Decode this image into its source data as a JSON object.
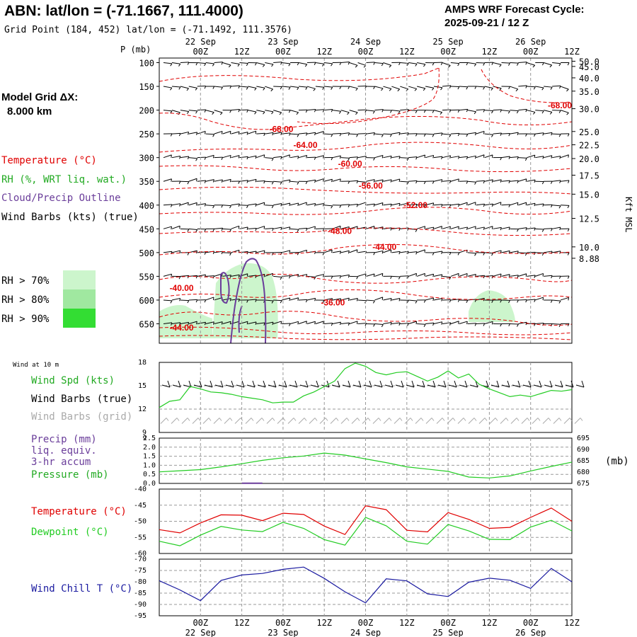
{
  "header": {
    "title": "ABN:  lat/lon = (-71.1667, 111.4000)",
    "subtitle": "Grid Point (184, 452) lat/lon = (-71.1492, 111.3576)",
    "cycle_label": "AMPS WRF Forecast Cycle:",
    "cycle_value": "2025-09-21 / 12  Z"
  },
  "left_panel": {
    "grid_label": "Model Grid ΔX:",
    "grid_value": "8.000 km",
    "temperature_label": "Temperature (°C)",
    "rh_label": "RH (%, WRT liq. wat.)",
    "cloud_label": "Cloud/Precip Outline",
    "wind_barbs_label": "Wind Barbs (kts) (true)",
    "rh_bins": [
      "RH > 70%",
      "RH > 80%",
      "RH > 90%"
    ],
    "p_axis_label": "P (mb)"
  },
  "colors": {
    "temperature": "#e00000",
    "rh_label": "#22aa22",
    "cloud": "#6a3d9a",
    "rh70": "#ccf5cc",
    "rh80": "#a0e8a0",
    "rh90": "#33dd33",
    "dewpoint": "#22cc22",
    "wind_chill": "#1a1aa0",
    "grid_barbs": "#aaaaaa"
  },
  "time_axis": {
    "hour_labels": [
      "00Z",
      "12Z",
      "00Z",
      "12Z",
      "00Z",
      "12Z",
      "00Z",
      "12Z",
      "00Z",
      "12Z"
    ],
    "day_labels": [
      "22 Sep",
      "23 Sep",
      "24 Sep",
      "25 Sep",
      "26 Sep"
    ]
  },
  "bottom_labels": {
    "wind10_title": "Wind at 10 m",
    "wind_spd": "Wind Spd (kts)",
    "wind_barbs_true": "Wind Barbs (true)",
    "wind_barbs_grid": "Wind Barbs (grid)",
    "precip": "Precip (mm)",
    "liq_equiv": "liq. equiv.",
    "accum": "3-hr accum",
    "pressure": "Pressure (mb)",
    "pressure_unit": "(mb)",
    "temperature": "Temperature (°C)",
    "dewpoint": "Dewpoint (°C)",
    "wind_chill": "Wind Chill T (°C)"
  },
  "chart_data": [
    {
      "type": "time-height cross section",
      "x_unit": "forecast hour from 2025-09-21 12Z",
      "x_range": [
        0,
        120
      ],
      "pressure_levels": [
        100,
        150,
        200,
        250,
        300,
        350,
        400,
        450,
        500,
        550,
        600,
        650
      ],
      "height_labels_kft": [
        "50.0",
        "45.0",
        "40.0",
        "35.0",
        "30.0",
        "25.0",
        "22.5",
        "20.0",
        "17.5",
        "15.0",
        "12.5",
        "10.0",
        "8.88"
      ],
      "height_pressures": [
        97,
        108,
        132,
        160,
        197,
        245,
        273,
        302,
        337,
        377,
        428,
        488,
        512
      ],
      "height_axis_label": "Kft MSL",
      "temperature_contours": [
        {
          "label": "-68.00",
          "at_hour": 32,
          "at_p": 240
        },
        {
          "label": "-64.00",
          "at_hour": 39,
          "at_p": 274
        },
        {
          "label": "-60.00",
          "at_hour": 52,
          "at_p": 313
        },
        {
          "label": "-56.00",
          "at_hour": 58,
          "at_p": 359
        },
        {
          "label": "-52.00",
          "at_hour": 71,
          "at_p": 400
        },
        {
          "label": "-48.00",
          "at_hour": 49,
          "at_p": 455
        },
        {
          "label": "-44.00",
          "at_hour": 62,
          "at_p": 488
        },
        {
          "label": "-40.00",
          "at_hour": 3,
          "at_p": 575
        },
        {
          "label": "-36.00",
          "at_hour": 47,
          "at_p": 605
        },
        {
          "label": "-44.00",
          "at_hour": 3,
          "at_p": 658
        },
        {
          "label": "-68.00",
          "at_hour": 113,
          "at_p": 190
        }
      ]
    },
    {
      "type": "line",
      "title": "Wind Spd (kts)",
      "y_ticks": [
        9,
        12,
        15,
        18
      ],
      "ylim": [
        9,
        18
      ],
      "x_hours": [
        0,
        3,
        6,
        9,
        12,
        15,
        18,
        21,
        24,
        27,
        30,
        33,
        36,
        39,
        42,
        45,
        48,
        51,
        54,
        57,
        60,
        63,
        66,
        69,
        72,
        75,
        78,
        81,
        84,
        87,
        90,
        93,
        96,
        99,
        102,
        105,
        108,
        111,
        114,
        117,
        120
      ],
      "values": [
        12.2,
        13,
        13.2,
        14.9,
        14.6,
        14.2,
        14.1,
        13.9,
        13.6,
        13.4,
        13.2,
        12.8,
        12.9,
        12.9,
        13.7,
        14.2,
        14.9,
        15.6,
        17.2,
        17.9,
        17.5,
        16.7,
        16.4,
        16.7,
        16.8,
        16.2,
        15.6,
        16.1,
        16.9,
        16,
        16.5,
        15.2,
        14.6,
        14.1,
        13.6,
        13.8,
        13.6,
        14,
        14.4,
        14.3,
        14.5
      ]
    },
    {
      "type": "line",
      "title": "Pressure (mb)",
      "y_ticks_left": [
        "0.0",
        "0.5",
        "1.0",
        "1.5",
        "2.0",
        "2.5"
      ],
      "precip_ylim": [
        0,
        2.5
      ],
      "y_ticks_right": [
        "675",
        "680",
        "685",
        "690",
        "695"
      ],
      "ylim": [
        675,
        695
      ],
      "x_hours": [
        0,
        6,
        12,
        18,
        24,
        30,
        36,
        42,
        48,
        54,
        60,
        66,
        72,
        78,
        84,
        90,
        96,
        102,
        108,
        114,
        120
      ],
      "values": [
        680.1,
        680.6,
        681.1,
        682.3,
        683.7,
        685.2,
        686.3,
        687.1,
        688.4,
        687.5,
        685.8,
        684.2,
        682.3,
        681.3,
        680.3,
        677.8,
        677.4,
        678.3,
        680.5,
        682.5,
        684.4
      ],
      "precip_events": [
        {
          "from_hour": 24,
          "to_hour": 30,
          "value": 0.05
        }
      ]
    },
    {
      "type": "line",
      "title": "Temperature / Dewpoint (°C)",
      "y_ticks": [
        -40,
        -45,
        -50,
        -55,
        -60
      ],
      "ylim": [
        -60,
        -40
      ],
      "x_hours": [
        0,
        6,
        12,
        18,
        24,
        30,
        36,
        42,
        48,
        54,
        60,
        66,
        72,
        78,
        84,
        90,
        96,
        102,
        108,
        114,
        120
      ],
      "series": [
        {
          "name": "Temperature",
          "values": [
            -52.6,
            -53.6,
            -50.5,
            -48,
            -48.1,
            -49.8,
            -47.5,
            -47.9,
            -51.5,
            -54.1,
            -45.2,
            -46.4,
            -52.8,
            -53.3,
            -47.3,
            -49.4,
            -52.2,
            -51.9,
            -48.8,
            -45.9,
            -50
          ]
        },
        {
          "name": "Dewpoint",
          "values": [
            -56.2,
            -57.6,
            -54.3,
            -51.6,
            -52.7,
            -53.2,
            -50.3,
            -52.2,
            -55.7,
            -57.4,
            -48.8,
            -51.4,
            -56.2,
            -57.1,
            -51,
            -53,
            -55.6,
            -55.7,
            -51.8,
            -49.7,
            -53
          ]
        }
      ]
    },
    {
      "type": "line",
      "title": "Wind Chill T (°C)",
      "y_ticks": [
        -70,
        -75,
        -80,
        -85,
        -90,
        -95
      ],
      "ylim": [
        -95,
        -70
      ],
      "x_hours": [
        0,
        6,
        12,
        18,
        24,
        30,
        36,
        42,
        48,
        54,
        60,
        66,
        72,
        78,
        84,
        90,
        96,
        102,
        108,
        114,
        120
      ],
      "series": [
        {
          "name": "Wind Chill",
          "values": [
            -79.5,
            -83.6,
            -88.3,
            -79.4,
            -77,
            -76.3,
            -74.5,
            -73.5,
            -78.5,
            -84.4,
            -89.3,
            -78.7,
            -79.6,
            -85.3,
            -86.5,
            -80.2,
            -78.4,
            -79.3,
            -82.9,
            -74.1,
            -80
          ]
        }
      ]
    }
  ]
}
